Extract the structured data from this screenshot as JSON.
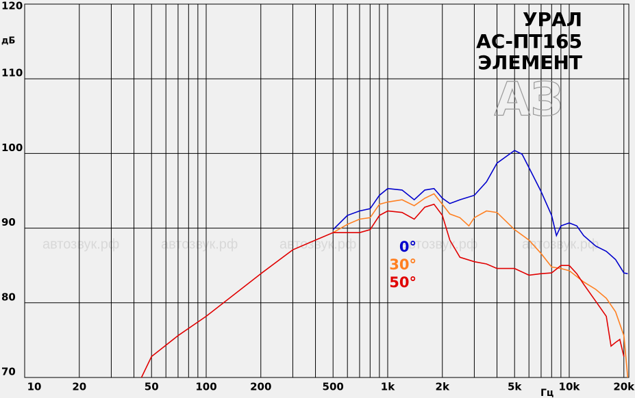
{
  "chart_data": {
    "type": "line",
    "title_lines": [
      "УРАЛ",
      "АС-ПТ165",
      "ЭЛЕМЕНТ"
    ],
    "logo": "АЗ",
    "watermark": "автозвук.рф",
    "x_label": "Гц",
    "y_label": "дБ",
    "log_x": true,
    "grid": true,
    "xlim": [
      10,
      21300
    ],
    "ylim": [
      70,
      120
    ],
    "xticks": [
      10,
      20,
      50,
      100,
      200,
      500,
      {
        "value": 1000,
        "label": "1k"
      },
      {
        "value": 2000,
        "label": "2k"
      },
      {
        "value": 5000,
        "label": "5k"
      },
      {
        "value": 10000,
        "label": "10k"
      },
      {
        "value": 20000,
        "label": "20k"
      }
    ],
    "xgrid": [
      10,
      20,
      30,
      40,
      50,
      60,
      70,
      80,
      90,
      100,
      200,
      300,
      400,
      500,
      600,
      700,
      800,
      900,
      1000,
      2000,
      3000,
      4000,
      5000,
      6000,
      7000,
      8000,
      9000,
      10000,
      20000
    ],
    "yticks": [
      70,
      80,
      90,
      100,
      110,
      120
    ],
    "series": [
      {
        "name": "0°",
        "color": "#0000cc",
        "x": [
          500,
          600,
          700,
          800,
          900,
          1000,
          1200,
          1400,
          1600,
          1800,
          2000,
          2200,
          2500,
          3000,
          3500,
          4000,
          5000,
          5500,
          6000,
          7000,
          8000,
          8500,
          9000,
          10000,
          11000,
          12000,
          14000,
          16000,
          18000,
          20000,
          21000
        ],
        "values": [
          89.8,
          91.7,
          92.3,
          92.6,
          94.4,
          95.3,
          95.1,
          93.8,
          95.1,
          95.3,
          94.0,
          93.3,
          93.8,
          94.4,
          96.2,
          98.7,
          100.4,
          99.9,
          98.1,
          94.9,
          91.7,
          89.0,
          90.3,
          90.7,
          90.3,
          89.0,
          87.6,
          86.9,
          85.8,
          84.0,
          83.9
        ]
      },
      {
        "name": "30°",
        "color": "#ff7f20",
        "x": [
          500,
          600,
          700,
          800,
          900,
          1000,
          1200,
          1400,
          1600,
          1800,
          2000,
          2200,
          2500,
          2800,
          3000,
          3500,
          4000,
          5000,
          6000,
          7000,
          8000,
          9000,
          10000,
          12000,
          14000,
          16000,
          18000,
          20000,
          21000
        ],
        "values": [
          89.4,
          90.5,
          91.2,
          91.4,
          93.2,
          93.5,
          93.8,
          93.0,
          94.0,
          94.6,
          93.2,
          91.9,
          91.4,
          90.3,
          91.4,
          92.3,
          92.1,
          89.8,
          88.4,
          86.6,
          84.8,
          84.6,
          84.3,
          82.8,
          81.8,
          80.6,
          78.8,
          75.6,
          70
        ]
      },
      {
        "name": "50°",
        "color": "#e00000",
        "x": [
          44,
          50,
          70,
          100,
          200,
          300,
          400,
          500,
          600,
          700,
          800,
          900,
          1000,
          1200,
          1400,
          1600,
          1800,
          2000,
          2200,
          2500,
          3000,
          3500,
          4000,
          5000,
          6000,
          7000,
          8000,
          9000,
          10000,
          11000,
          12000,
          14000,
          16000,
          17000,
          18000,
          19000,
          20000
        ],
        "values": [
          70,
          72.8,
          75.6,
          78.2,
          83.9,
          87.1,
          88.4,
          89.4,
          89.4,
          89.4,
          89.8,
          91.7,
          92.3,
          92.1,
          91.2,
          92.8,
          93.2,
          91.7,
          88.4,
          86.1,
          85.5,
          85.2,
          84.6,
          84.6,
          83.7,
          83.9,
          84.0,
          85.0,
          85.0,
          83.9,
          82.5,
          80.2,
          78.2,
          74.2,
          74.7,
          75.1,
          72.8
        ]
      }
    ]
  }
}
